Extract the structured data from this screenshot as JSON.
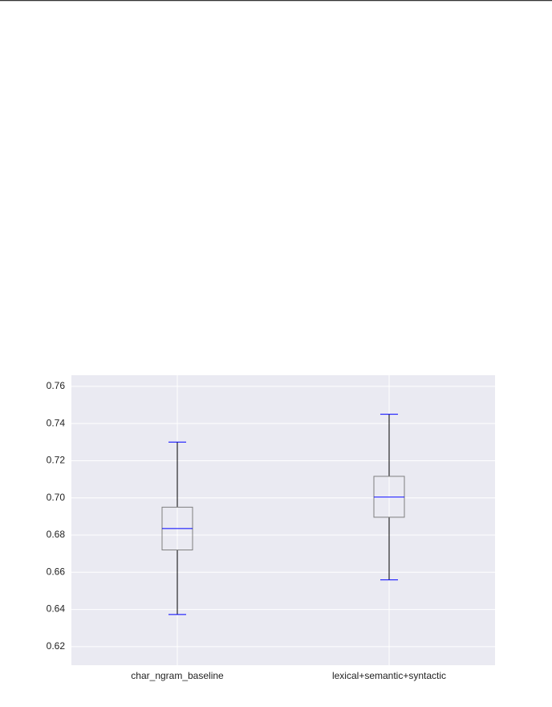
{
  "chart_data": {
    "type": "box",
    "categories": [
      "char_ngram_baseline",
      "lexical+semantic+syntactic"
    ],
    "boxes": [
      {
        "whisker_low": 0.6373,
        "q1": 0.672,
        "median": 0.6835,
        "q3": 0.695,
        "whisker_high": 0.73
      },
      {
        "whisker_low": 0.6559,
        "q1": 0.6896,
        "median": 0.7004,
        "q3": 0.7116,
        "whisker_high": 0.745
      }
    ],
    "box_color": "#7f7f7f",
    "median_color": "#0000ff",
    "whisker_color": "#000000",
    "cap_color": "#0000ff",
    "background": "#eaeaf2",
    "grid": true,
    "ylim": [
      0.61,
      0.766
    ],
    "yticks": [
      0.62,
      0.64,
      0.66,
      0.68,
      {
        "value": 0.7,
        "label": "0.70"
      },
      0.72,
      0.74,
      0.76
    ]
  }
}
